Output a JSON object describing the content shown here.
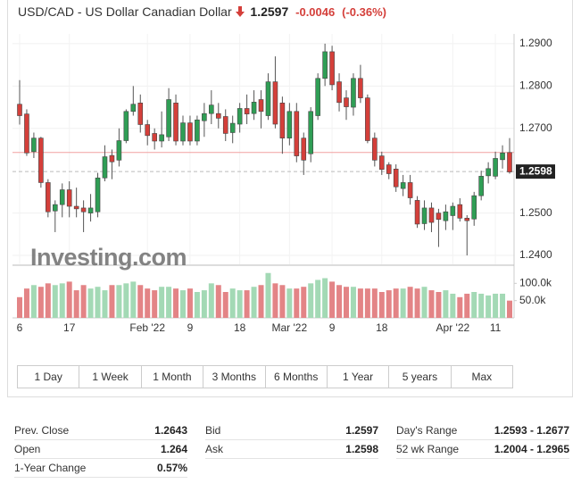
{
  "header": {
    "symbol": "USD/CAD - US Dollar Canadian Dollar",
    "price": "1.2597",
    "change": "-0.0046",
    "change_pct": "(-0.36%)"
  },
  "chart_data": {
    "type": "candlestick",
    "watermark": "Investing.com",
    "up_color": "#2f9e55",
    "down_color": "#d43f3a",
    "volume_up_color": "#a3d9b5",
    "volume_down_color": "#e38486",
    "categories": [
      "6",
      null,
      null,
      null,
      null,
      null,
      null,
      "17",
      null,
      null,
      null,
      null,
      null,
      null,
      null,
      null,
      null,
      null,
      "Feb '22",
      null,
      null,
      null,
      null,
      null,
      "9",
      null,
      null,
      null,
      null,
      null,
      null,
      "18",
      null,
      null,
      null,
      null,
      null,
      null,
      "Mar '22",
      null,
      null,
      null,
      null,
      null,
      "9",
      null,
      null,
      null,
      null,
      null,
      null,
      "18",
      null,
      null,
      null,
      null,
      null,
      null,
      null,
      null,
      null,
      "Apr '22",
      null,
      null,
      null,
      null,
      null,
      "11",
      null,
      null
    ],
    "ohlc": [
      [
        1.2757,
        1.2814,
        1.2709,
        1.273
      ],
      [
        1.2734,
        1.2745,
        1.2635,
        1.2642
      ],
      [
        1.2645,
        1.269,
        1.263,
        1.2677
      ],
      [
        1.2677,
        1.268,
        1.256,
        1.2572
      ],
      [
        1.2572,
        1.258,
        1.249,
        1.2503
      ],
      [
        1.2505,
        1.253,
        1.2455,
        1.252
      ],
      [
        1.252,
        1.257,
        1.249,
        1.2555
      ],
      [
        1.2555,
        1.2575,
        1.249,
        1.2516
      ],
      [
        1.2516,
        1.256,
        1.249,
        1.251
      ],
      [
        1.2512,
        1.253,
        1.2455,
        1.2503
      ],
      [
        1.25,
        1.2545,
        1.248,
        1.2512
      ],
      [
        1.2503,
        1.2595,
        1.249,
        1.2583
      ],
      [
        1.2583,
        1.266,
        1.2575,
        1.2633
      ],
      [
        1.2636,
        1.265,
        1.258,
        1.2621
      ],
      [
        1.2625,
        1.27,
        1.261,
        1.2671
      ],
      [
        1.2671,
        1.2745,
        1.2665,
        1.274
      ],
      [
        1.274,
        1.28,
        1.273,
        1.2757
      ],
      [
        1.276,
        1.278,
        1.269,
        1.2709
      ],
      [
        1.2709,
        1.272,
        1.266,
        1.2683
      ],
      [
        1.2688,
        1.27,
        1.265,
        1.267
      ],
      [
        1.267,
        1.274,
        1.2655,
        1.2685
      ],
      [
        1.268,
        1.2795,
        1.267,
        1.2768
      ],
      [
        1.276,
        1.278,
        1.266,
        1.267
      ],
      [
        1.267,
        1.273,
        1.266,
        1.2713
      ],
      [
        1.2713,
        1.273,
        1.266,
        1.267
      ],
      [
        1.267,
        1.273,
        1.266,
        1.272
      ],
      [
        1.2718,
        1.276,
        1.268,
        1.2735
      ],
      [
        1.2735,
        1.279,
        1.271,
        1.2755
      ],
      [
        1.2735,
        1.276,
        1.27,
        1.2724
      ],
      [
        1.2728,
        1.2745,
        1.267,
        1.2688
      ],
      [
        1.269,
        1.273,
        1.2665,
        1.2712
      ],
      [
        1.271,
        1.276,
        1.269,
        1.2747
      ],
      [
        1.2747,
        1.278,
        1.271,
        1.2734
      ],
      [
        1.2735,
        1.279,
        1.272,
        1.2762
      ],
      [
        1.2768,
        1.279,
        1.27,
        1.274
      ],
      [
        1.273,
        1.283,
        1.272,
        1.281
      ],
      [
        1.281,
        1.287,
        1.27,
        1.271
      ],
      [
        1.276,
        1.2775,
        1.264,
        1.2677
      ],
      [
        1.2677,
        1.276,
        1.266,
        1.274
      ],
      [
        1.274,
        1.276,
        1.262,
        1.2635
      ],
      [
        1.2677,
        1.269,
        1.259,
        1.2625
      ],
      [
        1.264,
        1.275,
        1.262,
        1.274
      ],
      [
        1.273,
        1.283,
        1.272,
        1.2818
      ],
      [
        1.2818,
        1.29,
        1.28,
        1.2881
      ],
      [
        1.2881,
        1.2895,
        1.279,
        1.2803
      ],
      [
        1.281,
        1.283,
        1.274,
        1.2761
      ],
      [
        1.2772,
        1.279,
        1.272,
        1.2751
      ],
      [
        1.275,
        1.283,
        1.273,
        1.2818
      ],
      [
        1.2818,
        1.285,
        1.276,
        1.2772
      ],
      [
        1.2772,
        1.278,
        1.2665,
        1.2671
      ],
      [
        1.2677,
        1.269,
        1.261,
        1.2625
      ],
      [
        1.2635,
        1.2645,
        1.259,
        1.2603
      ],
      [
        1.2614,
        1.262,
        1.258,
        1.2593
      ],
      [
        1.2604,
        1.2615,
        1.255,
        1.2562
      ],
      [
        1.2558,
        1.259,
        1.254,
        1.2572
      ],
      [
        1.2572,
        1.259,
        1.252,
        1.2536
      ],
      [
        1.253,
        1.254,
        1.2465,
        1.2474
      ],
      [
        1.2475,
        1.253,
        1.246,
        1.2512
      ],
      [
        1.2512,
        1.2525,
        1.2455,
        1.2478
      ],
      [
        1.25,
        1.251,
        1.242,
        1.2485
      ],
      [
        1.2482,
        1.252,
        1.246,
        1.2503
      ],
      [
        1.2494,
        1.2525,
        1.246,
        1.2516
      ],
      [
        1.252,
        1.2535,
        1.248,
        1.2488
      ],
      [
        1.2488,
        1.2495,
        1.24,
        1.2482
      ],
      [
        1.2486,
        1.255,
        1.247,
        1.2541
      ],
      [
        1.2541,
        1.26,
        1.253,
        1.2587
      ],
      [
        1.2588,
        1.262,
        1.257,
        1.2605
      ],
      [
        1.2587,
        1.2645,
        1.258,
        1.2629
      ],
      [
        1.2626,
        1.266,
        1.2605,
        1.2642
      ],
      [
        1.2643,
        1.2677,
        1.2593,
        1.2597
      ]
    ],
    "volume": [
      60000,
      85000,
      95000,
      90000,
      100000,
      95000,
      100000,
      105000,
      80000,
      95000,
      85000,
      90000,
      80000,
      95000,
      95000,
      100000,
      105000,
      95000,
      85000,
      80000,
      90000,
      90000,
      85000,
      80000,
      85000,
      75000,
      80000,
      100000,
      95000,
      75000,
      85000,
      80000,
      80000,
      90000,
      95000,
      130000,
      100000,
      95000,
      85000,
      85000,
      90000,
      100000,
      110000,
      115000,
      105000,
      95000,
      90000,
      90000,
      85000,
      85000,
      85000,
      75000,
      80000,
      85000,
      85000,
      90000,
      85000,
      90000,
      80000,
      75000,
      80000,
      70000,
      60000,
      70000,
      75000,
      70000,
      65000,
      70000,
      70000,
      50000
    ],
    "ylim": [
      1.2379,
      1.2923
    ],
    "yticks": [
      {
        "value": 1.29,
        "label": "1.2900"
      },
      {
        "value": 1.28,
        "label": "1.2800"
      },
      {
        "value": 1.27,
        "label": "1.2700"
      },
      {
        "value": 1.25,
        "label": "1.2500"
      },
      {
        "value": 1.24,
        "label": "1.2400"
      }
    ],
    "volume_ylim": [
      0,
      150000
    ],
    "volume_yticks": [
      {
        "value": 100000,
        "label": "100.0k"
      },
      {
        "value": 50000,
        "label": "50.0k"
      }
    ],
    "prev_close_line": {
      "value": 1.2643,
      "color": "#f2a0a0"
    },
    "last_price": {
      "value": 1.2598,
      "color": "#bbbbbb"
    },
    "grid": true
  },
  "ranges": [
    "1 Day",
    "1 Week",
    "1 Month",
    "3 Months",
    "6 Months",
    "1 Year",
    "5 years",
    "Max"
  ],
  "stats": [
    [
      [
        "Prev. Close",
        "1.2643"
      ],
      [
        "Bid",
        "1.2597"
      ],
      [
        "Day's Range",
        "1.2593 - 1.2677"
      ]
    ],
    [
      [
        "Open",
        "1.264"
      ],
      [
        "Ask",
        "1.2598"
      ],
      [
        "52 wk Range",
        "1.2004 - 1.2965"
      ]
    ],
    [
      [
        "1-Year Change",
        "0.57%"
      ]
    ]
  ]
}
